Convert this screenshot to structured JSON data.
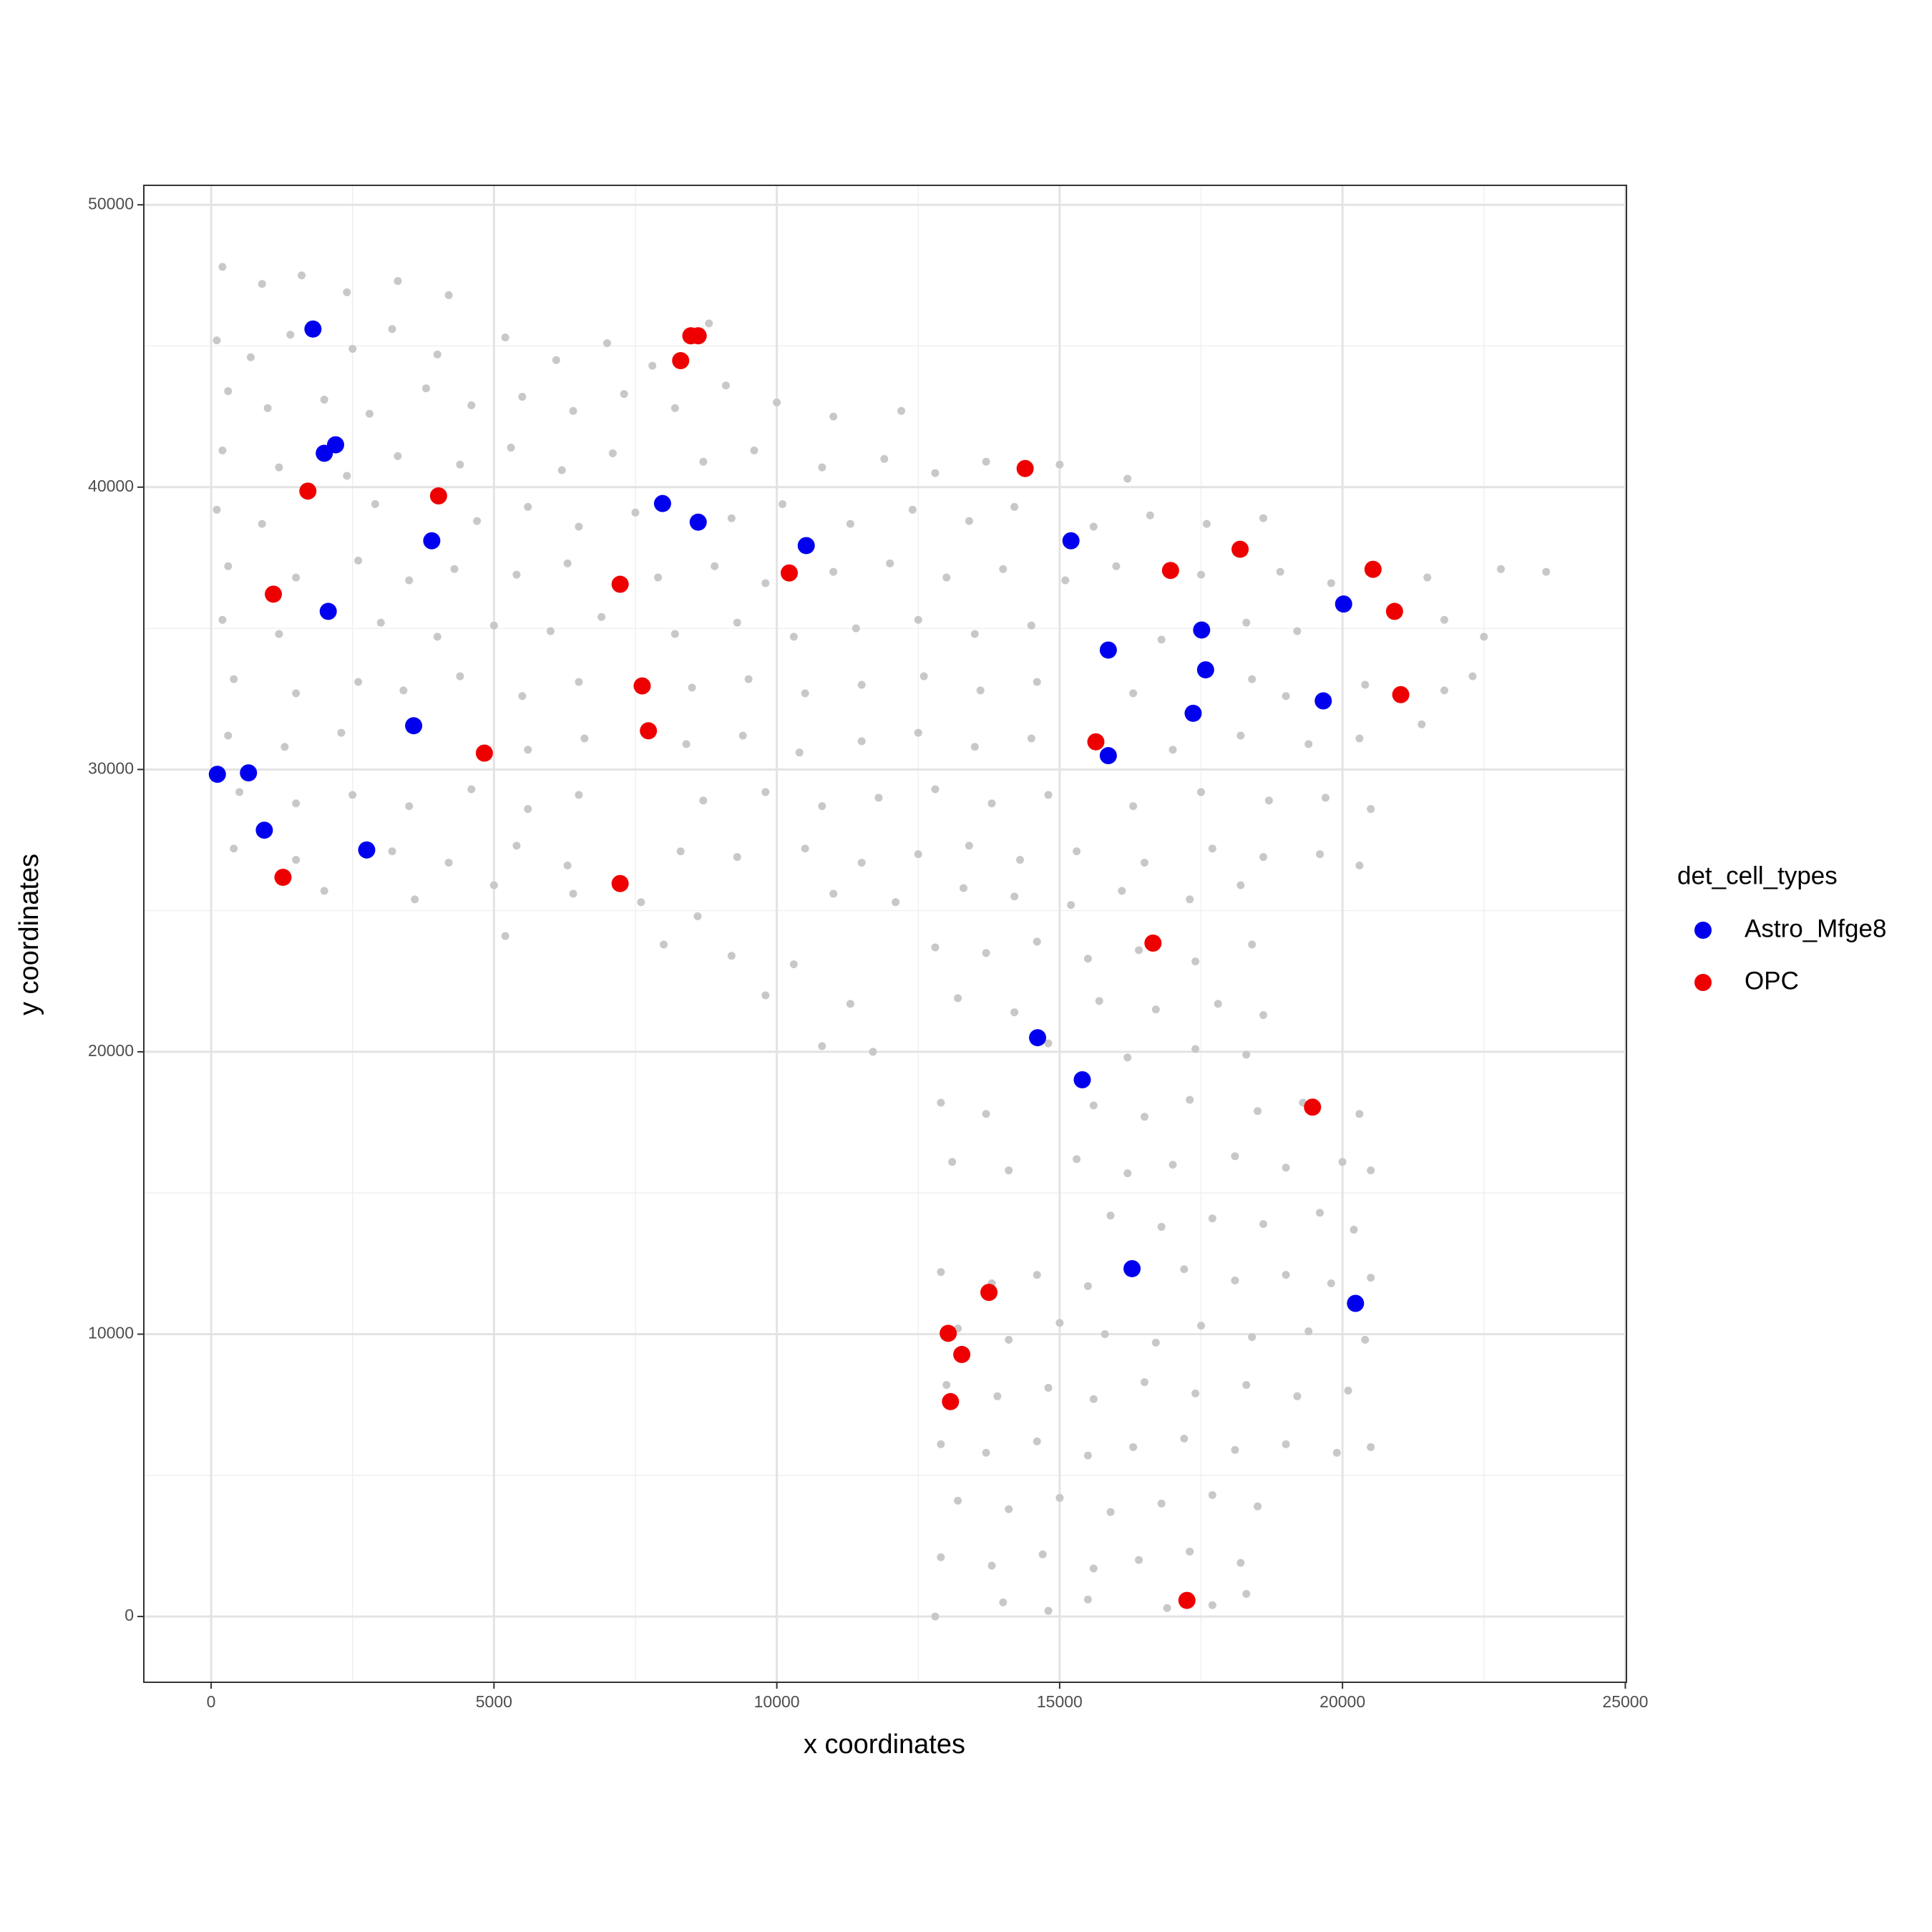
{
  "chart_data": {
    "type": "scatter",
    "x_label": "x coordinates",
    "y_label": "y coordinates",
    "legend_title": "det_cell_types",
    "legend": "right",
    "grid": true,
    "xlim": [
      -1190,
      25020
    ],
    "ylim": [
      -2330,
      50690
    ],
    "xticks": [
      0,
      5000,
      10000,
      15000,
      20000,
      25000
    ],
    "yticks": [
      0,
      10000,
      20000,
      30000,
      40000,
      50000
    ],
    "series": [
      {
        "color": "#c8c8c8",
        "x": [
          200,
          900,
          1600,
          2400,
          3300,
          4200,
          100,
          700,
          1400,
          2500,
          3200,
          4000,
          5200,
          6100,
          7000,
          7800,
          8800,
          300,
          1000,
          2000,
          2800,
          3800,
          4600,
          5500,
          6400,
          7300,
          8200,
          9100,
          10000,
          11000,
          12200,
          200,
          1200,
          2400,
          3300,
          4400,
          5300,
          6200,
          7100,
          8700,
          9600,
          10800,
          11900,
          12800,
          13700,
          15000,
          16200,
          100,
          900,
          2900,
          4700,
          5600,
          6500,
          7500,
          9200,
          10100,
          11300,
          12400,
          13400,
          14200,
          15600,
          16600,
          17600,
          18600,
          300,
          1500,
          2600,
          3500,
          4300,
          5400,
          6300,
          7900,
          8900,
          9800,
          11000,
          12000,
          13000,
          14000,
          15100,
          16000,
          17500,
          18900,
          19800,
          21500,
          22800,
          23600,
          200,
          1200,
          3000,
          4000,
          5000,
          6000,
          6900,
          8200,
          9300,
          10300,
          11400,
          12500,
          13500,
          14500,
          16800,
          18300,
          19200,
          21800,
          22500,
          400,
          1500,
          2600,
          3400,
          4400,
          5500,
          6500,
          8500,
          9500,
          10500,
          11500,
          12600,
          13600,
          14600,
          16300,
          18400,
          19000,
          20400,
          21800,
          22300,
          300,
          1300,
          2300,
          5600,
          6600,
          8400,
          9400,
          10400,
          11500,
          12500,
          13500,
          14500,
          17000,
          18200,
          19400,
          20300,
          21400,
          500,
          1500,
          2500,
          3500,
          4600,
          5600,
          6500,
          8700,
          9800,
          10800,
          11800,
          12800,
          13800,
          14800,
          16300,
          17500,
          18700,
          19700,
          20500,
          400,
          1500,
          3200,
          4200,
          5400,
          6300,
          8300,
          9300,
          10500,
          11500,
          12500,
          13400,
          14300,
          15300,
          16500,
          17700,
          18600,
          19600,
          20300,
          2000,
          3600,
          5000,
          6400,
          7600,
          8600,
          11000,
          12100,
          13300,
          14200,
          15200,
          16100,
          17300,
          18200,
          5200,
          8000,
          9200,
          10300,
          12800,
          13700,
          14600,
          15500,
          16400,
          17400,
          18400,
          9800,
          11300,
          13200,
          14200,
          15700,
          16700,
          17800,
          18600,
          10800,
          11700,
          14800,
          16200,
          17400,
          18300,
          12900,
          13700,
          15600,
          16500,
          17300,
          18500,
          19300,
          20300,
          13100,
          14100,
          15300,
          16200,
          17000,
          18100,
          19000,
          20000,
          20500,
          15900,
          16800,
          17700,
          18600,
          19600,
          20200,
          12900,
          13800,
          14600,
          15500,
          17200,
          18100,
          19000,
          19800,
          20500,
          13200,
          14100,
          15000,
          15800,
          16700,
          17500,
          18400,
          19400,
          20400,
          13000,
          13900,
          14800,
          15600,
          16500,
          17400,
          18300,
          19200,
          20100,
          12900,
          13700,
          14600,
          15500,
          16300,
          17200,
          18100,
          19000,
          19900,
          20500,
          13200,
          14100,
          15000,
          15900,
          16800,
          17700,
          18500,
          12900,
          13800,
          14700,
          15600,
          16400,
          17300,
          18200,
          12800,
          14000,
          14800,
          15500,
          16900,
          17700,
          18300
        ],
        "values": [
          47800,
          47200,
          47500,
          46900,
          47300,
          46800,
          45200,
          44600,
          45400,
          44900,
          45600,
          44700,
          45300,
          44500,
          45100,
          44300,
          45800,
          43400,
          42800,
          43100,
          42600,
          43500,
          42900,
          43200,
          42700,
          43300,
          42800,
          43600,
          43000,
          42500,
          42700,
          41300,
          40700,
          40400,
          41100,
          40800,
          41400,
          40600,
          41200,
          40900,
          41300,
          40700,
          41000,
          40500,
          40900,
          40800,
          40300,
          39200,
          38700,
          39400,
          38800,
          39300,
          38600,
          39100,
          38900,
          39400,
          38700,
          39200,
          38800,
          39300,
          38600,
          39000,
          38700,
          38900,
          37200,
          36800,
          37400,
          36700,
          37100,
          36900,
          37300,
          36800,
          37200,
          36600,
          37000,
          37300,
          36800,
          37100,
          36700,
          37200,
          36900,
          37000,
          36600,
          36800,
          37100,
          37000,
          35300,
          34800,
          35200,
          34700,
          35100,
          34900,
          35400,
          34800,
          35200,
          34700,
          35000,
          35300,
          34800,
          35100,
          34600,
          35200,
          34900,
          35300,
          34700,
          33200,
          32700,
          33100,
          32800,
          33300,
          32600,
          33100,
          32900,
          33200,
          32700,
          33000,
          33300,
          32800,
          33100,
          32700,
          33200,
          32600,
          33000,
          32800,
          33300,
          31200,
          30800,
          31300,
          30700,
          31100,
          30900,
          31200,
          30600,
          31000,
          31300,
          30800,
          31100,
          30700,
          31200,
          30900,
          31100,
          31600,
          29200,
          28800,
          29100,
          28700,
          29300,
          28600,
          29100,
          28900,
          29200,
          28700,
          29000,
          29300,
          28800,
          29100,
          28700,
          29200,
          28900,
          29000,
          28600,
          27200,
          26800,
          27100,
          26700,
          27300,
          26600,
          27100,
          26900,
          27200,
          26700,
          27000,
          27300,
          26800,
          27100,
          26700,
          27200,
          26900,
          27000,
          26600,
          25700,
          25400,
          25900,
          25600,
          25300,
          24800,
          25600,
          25300,
          25800,
          25500,
          25200,
          25700,
          25400,
          25900,
          24100,
          23800,
          23400,
          23100,
          23700,
          23500,
          23900,
          23300,
          23600,
          23200,
          23800,
          22000,
          21700,
          21900,
          21400,
          21800,
          21500,
          21700,
          21300,
          20200,
          20000,
          20300,
          19800,
          20100,
          19900,
          18200,
          17800,
          18100,
          17700,
          18300,
          17900,
          18200,
          17800,
          16100,
          15800,
          16200,
          15700,
          16000,
          16300,
          15900,
          16100,
          15800,
          14200,
          13800,
          14100,
          13900,
          14300,
          13700,
          12200,
          11800,
          12100,
          11700,
          12300,
          11900,
          12100,
          11800,
          12000,
          10200,
          9800,
          10400,
          10000,
          9700,
          10300,
          9900,
          10100,
          9800,
          8200,
          7800,
          8100,
          7700,
          8300,
          7900,
          8200,
          7800,
          8000,
          6100,
          5800,
          6200,
          5700,
          6000,
          6300,
          5900,
          6100,
          5800,
          6000,
          4100,
          3800,
          4200,
          3700,
          4000,
          4300,
          3900,
          2100,
          1800,
          2200,
          1700,
          2000,
          2300,
          1900,
          0,
          500,
          200,
          600,
          300,
          400,
          800
        ]
      },
      {
        "name": "Astro_Mfge8",
        "color": "#0000ee",
        "x": [
          1800,
          2000,
          2200,
          3900,
          2070,
          110,
          660,
          940,
          2750,
          3580,
          7980,
          8610,
          10520,
          15200,
          15860,
          15860,
          17510,
          17580,
          17360,
          20020,
          19660,
          14610,
          15400,
          16280,
          20230
        ],
        "values": [
          45600,
          41200,
          41500,
          38100,
          35600,
          29830,
          29880,
          27850,
          27150,
          31550,
          39420,
          38760,
          37930,
          38100,
          34230,
          30490,
          34940,
          33530,
          31990,
          35860,
          32430,
          20500,
          19010,
          12320,
          11090
        ]
      },
      {
        "name": "OPC",
        "color": "#ee0000",
        "x": [
          8480,
          8610,
          8300,
          1710,
          4020,
          1100,
          4830,
          7230,
          7620,
          7730,
          7230,
          10220,
          14390,
          16960,
          18190,
          20540,
          20920,
          21030,
          15640,
          16650,
          19470,
          13750,
          13030,
          13270,
          13070,
          17250,
          1270
        ],
        "values": [
          45360,
          45360,
          44480,
          39860,
          39690,
          36210,
          30580,
          36560,
          32960,
          31370,
          25960,
          36960,
          40660,
          37050,
          37800,
          37090,
          35600,
          32650,
          30980,
          23850,
          18040,
          11480,
          10030,
          9280,
          7610,
          570,
          26180
        ]
      }
    ]
  }
}
